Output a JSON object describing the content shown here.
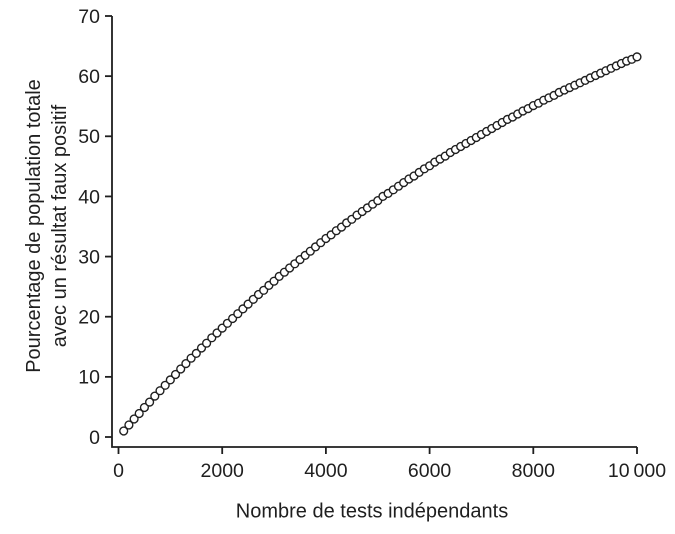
{
  "figure": {
    "background": "#ffffff",
    "axis_color": "#1f1f1f",
    "marker_fill": "#ffffff"
  },
  "chart_data": {
    "type": "scatter",
    "marker": "open-circle",
    "title": "",
    "xlabel": "Nombre de tests indépendants",
    "ylabel_line1": "Pourcentage de population totale",
    "ylabel_line2": "avec un résultat faux positif",
    "xlim": [
      0,
      10000
    ],
    "ylim": [
      0,
      70
    ],
    "xticks": [
      0,
      2000,
      4000,
      6000,
      8000,
      10000
    ],
    "xtick_labels": [
      "0",
      "2000",
      "4000",
      "6000",
      "8000",
      "10 000"
    ],
    "yticks": [
      0,
      10,
      20,
      30,
      40,
      50,
      60,
      70
    ],
    "ytick_labels": [
      "0",
      "10",
      "20",
      "30",
      "40",
      "50",
      "60",
      "70"
    ],
    "grid": false,
    "legend": "none",
    "series": [
      {
        "x": [
          100,
          200,
          300,
          400,
          500,
          600,
          700,
          800,
          900,
          1000,
          1100,
          1200,
          1300,
          1400,
          1500,
          1600,
          1700,
          1800,
          1900,
          2000,
          2100,
          2200,
          2300,
          2400,
          2500,
          2600,
          2700,
          2800,
          2900,
          3000,
          3100,
          3200,
          3300,
          3400,
          3500,
          3600,
          3700,
          3800,
          3900,
          4000,
          4100,
          4200,
          4300,
          4400,
          4500,
          4600,
          4700,
          4800,
          4900,
          5000,
          5100,
          5200,
          5300,
          5400,
          5500,
          5600,
          5700,
          5800,
          5900,
          6000,
          6100,
          6200,
          6300,
          6400,
          6500,
          6600,
          6700,
          6800,
          6900,
          7000,
          7100,
          7200,
          7300,
          7400,
          7500,
          7600,
          7700,
          7800,
          7900,
          8000,
          8100,
          8200,
          8300,
          8400,
          8500,
          8600,
          8700,
          8800,
          8900,
          9000,
          9100,
          9200,
          9300,
          9400,
          9500,
          9600,
          9700,
          9800,
          9900,
          10000
        ],
        "y": [
          1.0,
          2.0,
          3.0,
          3.9,
          4.9,
          5.8,
          6.8,
          7.7,
          8.6,
          9.5,
          10.4,
          11.3,
          12.2,
          13.1,
          13.9,
          14.8,
          15.6,
          16.5,
          17.3,
          18.1,
          18.9,
          19.7,
          20.5,
          21.3,
          22.1,
          22.9,
          23.7,
          24.4,
          25.2,
          25.9,
          26.7,
          27.4,
          28.1,
          28.8,
          29.5,
          30.2,
          30.9,
          31.6,
          32.3,
          33.0,
          33.6,
          34.3,
          34.9,
          35.6,
          36.2,
          36.9,
          37.5,
          38.1,
          38.7,
          39.3,
          40.0,
          40.5,
          41.1,
          41.7,
          42.3,
          42.9,
          43.4,
          44.0,
          44.6,
          45.1,
          45.7,
          46.2,
          46.7,
          47.3,
          47.8,
          48.3,
          48.8,
          49.3,
          49.8,
          50.3,
          50.8,
          51.3,
          51.8,
          52.3,
          52.8,
          53.2,
          53.7,
          54.2,
          54.6,
          55.1,
          55.5,
          56.0,
          56.4,
          56.8,
          57.3,
          57.7,
          58.1,
          58.5,
          58.9,
          59.3,
          59.7,
          60.1,
          60.5,
          60.9,
          61.3,
          61.7,
          62.1,
          62.5,
          62.8,
          63.2
        ]
      }
    ]
  }
}
